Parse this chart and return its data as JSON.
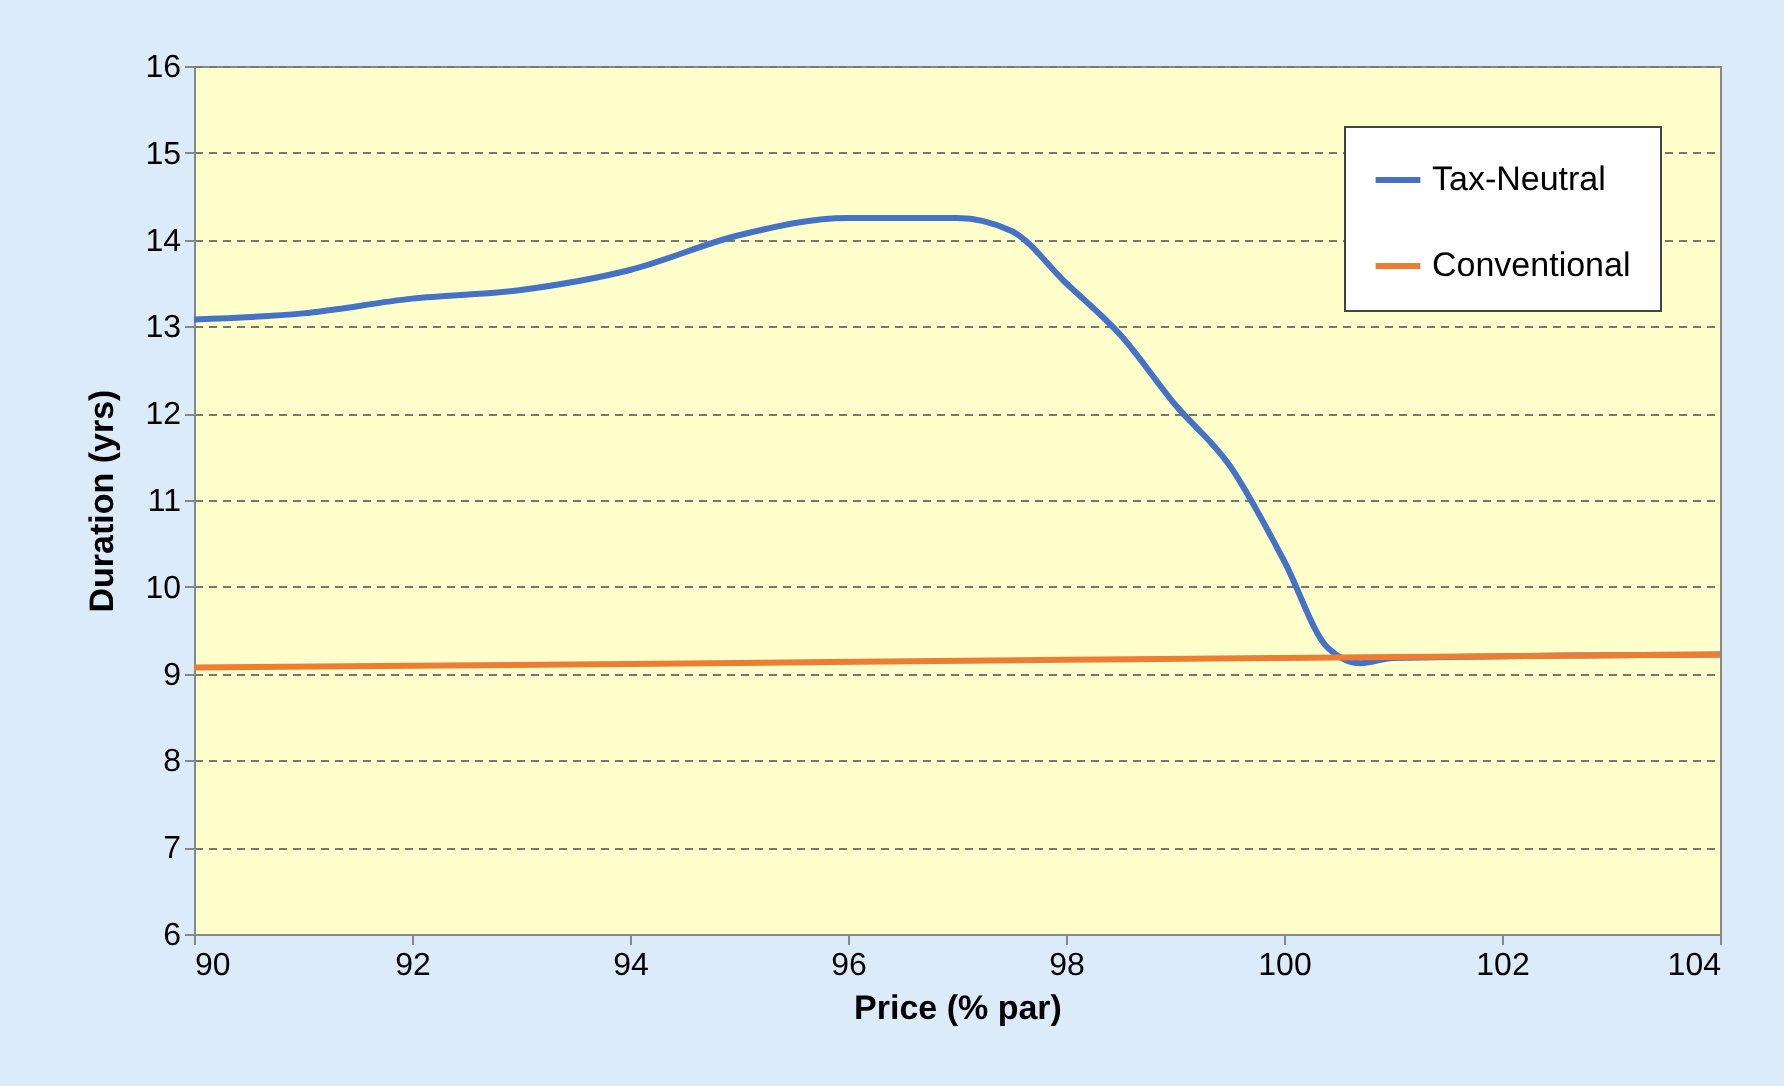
{
  "chart_data": {
    "type": "line",
    "xlabel": "Price (% par)",
    "ylabel": "Duration (yrs)",
    "xlim": [
      90,
      104
    ],
    "xticks": [
      90,
      92,
      94,
      96,
      98,
      100,
      102,
      104
    ],
    "ylim": [
      6,
      16
    ],
    "yticks": [
      6,
      7,
      8,
      9,
      10,
      11,
      12,
      13,
      14,
      15,
      16
    ],
    "grid": "y",
    "legend": "top right",
    "line_style": "solid",
    "marker": "none",
    "series": [
      {
        "name": "Tax-Neutral",
        "color": "#4472c4",
        "x": [
          90,
          91,
          92,
          93,
          94,
          95,
          96,
          97,
          97.5,
          98,
          98.5,
          99,
          99.5,
          100,
          100.4,
          100.7,
          101,
          104
        ],
        "values": [
          13.08,
          13.15,
          13.32,
          13.42,
          13.65,
          14.05,
          14.25,
          14.25,
          14.1,
          13.5,
          12.9,
          12.1,
          11.4,
          10.3,
          9.3,
          9.12,
          9.18,
          9.22
        ]
      },
      {
        "name": "Conventional",
        "color": "#ed7d31",
        "x": [
          90,
          94,
          98,
          100,
          102,
          104
        ],
        "values": [
          9.07,
          9.11,
          9.16,
          9.18,
          9.2,
          9.22
        ]
      }
    ]
  }
}
